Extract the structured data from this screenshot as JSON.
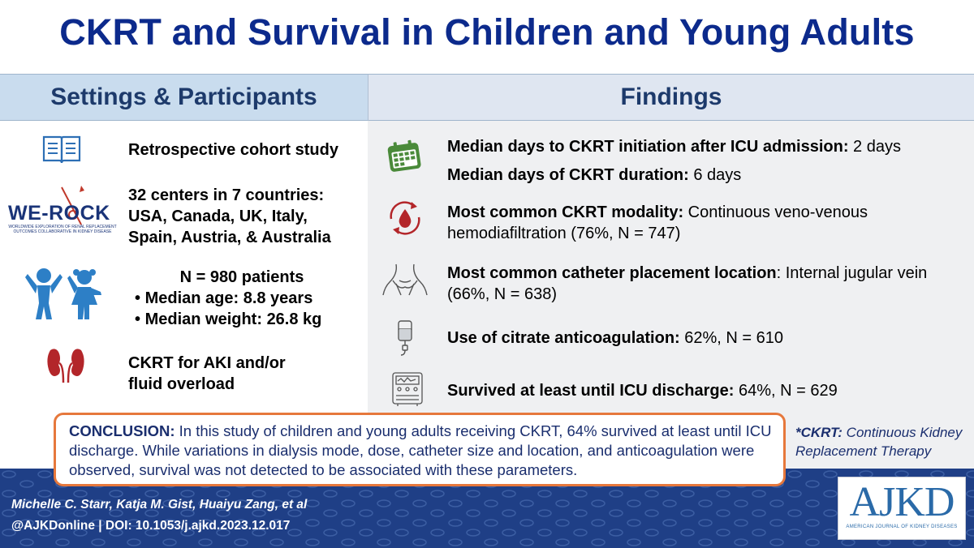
{
  "title": "CKRT and Survival in Children and Young Adults",
  "headers": {
    "left": "Settings & Participants",
    "right": "Findings"
  },
  "left": {
    "study_type": "Retrospective cohort study",
    "centers_line1": "32 centers in 7 countries:",
    "centers_line2": "USA, Canada, UK, Italy,",
    "centers_line3": "Spain, Austria, & Australia",
    "werock_logo": "WE-ROCK",
    "werock_sub1": "WORLDWIDE EXPLORATION OF RENAL REPLACEMENT",
    "werock_sub2": "OUTCOMES COLLABORATIVE IN KIDNEY DISEASE",
    "patients": "N = 980 patients",
    "median_age": "Median age: 8.8 years",
    "median_weight": "Median weight: 26.8 kg",
    "indication_line1": "CKRT for AKI and/or",
    "indication_line2": "fluid overload"
  },
  "findings": {
    "f1_label": "Median days to CKRT initiation after ICU admission:",
    "f1_value": " 2 days",
    "f2_label": "Median days of CKRT duration:",
    "f2_value": " 6 days",
    "f3_label": "Most common CKRT modality:",
    "f3_value": " Continuous veno-venous hemodiafiltration (76%, N = 747)",
    "f4_label": "Most common catheter placement location",
    "f4_value": ": Internal jugular vein (66%, N = 638)",
    "f5_label": "Use of citrate anticoagulation:",
    "f5_value": " 62%, N = 610",
    "f6_label": "Survived at least until ICU discharge:",
    "f6_value": " 64%, N = 629"
  },
  "conclusion": {
    "label": "CONCLUSION:",
    "text": " In this study of children and young adults receiving CKRT, 64% survived at least until ICU discharge. While variations in dialysis mode, dose, catheter size and location, and anticoagulation were observed, survival was not detected to be associated with these parameters."
  },
  "note": {
    "label": "*CKRT:",
    "text": " Continuous Kidney Replacement Therapy"
  },
  "footer": {
    "authors": "Michelle C. Starr, Katja M. Gist, Huaiyu Zang, et al",
    "doi": "@AJKDonline | DOI: 10.1053/j.ajkd.2023.12.017"
  },
  "ajkd": {
    "word": "AJKD",
    "sub": "AMERICAN JOURNAL OF KIDNEY DISEASES"
  },
  "colors": {
    "title": "#0c2a8c",
    "header_left_bg": "#c9dcee",
    "header_right_bg": "#dfe6f1",
    "footer_bg": "#1f3f86",
    "conclusion_border": "#e6783c",
    "calendar_icon": "#4a8a3a",
    "blood_icon": "#b3262a",
    "kidney_icon": "#b3262a",
    "people_icon": "#2d7fc6"
  },
  "icons": [
    "book-icon",
    "werock-logo",
    "children-icon",
    "kidneys-icon",
    "calendar-icon",
    "blood-drop-cycle-icon",
    "neck-icon",
    "iv-bag-icon",
    "dialysis-machine-icon"
  ]
}
